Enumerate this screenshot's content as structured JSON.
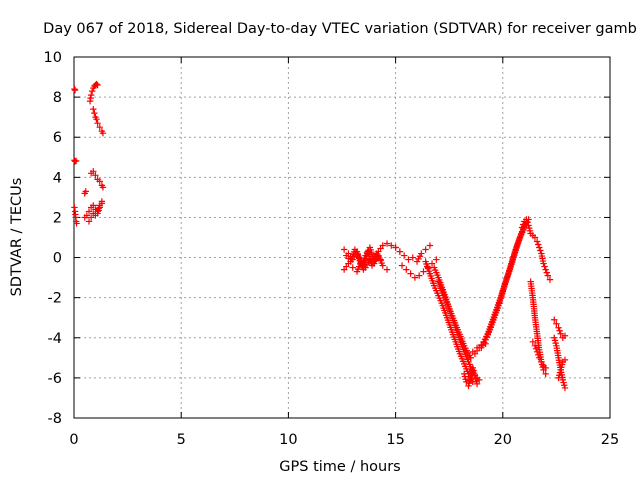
{
  "chart_data": {
    "type": "scatter",
    "title": "Day 067 of 2018, Sidereal Day-to-day VTEC variation (SDTVAR) for receiver gamb",
    "xlabel": "GPS time / hours",
    "ylabel": "SDTVAR / TECUs",
    "xlim": [
      0,
      25
    ],
    "ylim": [
      -8,
      10
    ],
    "xticks": [
      0,
      5,
      10,
      15,
      20,
      25
    ],
    "yticks": [
      -8,
      -6,
      -4,
      -2,
      0,
      2,
      4,
      6,
      8,
      10
    ],
    "grid": true,
    "marker": "+",
    "color": "#ff0000",
    "series": [
      {
        "name": "SDTVAR",
        "segments": [
          {
            "x": [
              0.02,
              0.05
            ],
            "y": [
              8.4,
              8.35
            ]
          },
          {
            "x": [
              0.02,
              0.05,
              0.1
            ],
            "y": [
              4.85,
              4.8,
              4.82
            ]
          },
          {
            "x": [
              0.02,
              0.05,
              0.08,
              0.1,
              0.12
            ],
            "y": [
              2.5,
              2.3,
              2.0,
              1.8,
              1.7
            ]
          },
          {
            "x": [
              0.75,
              0.8,
              0.85,
              0.9,
              0.95,
              1.0,
              1.05,
              1.1
            ],
            "y": [
              7.8,
              8.1,
              8.3,
              8.45,
              8.55,
              8.6,
              8.65,
              8.6
            ]
          },
          {
            "x": [
              0.9,
              0.95,
              1.0,
              1.05,
              1.1,
              1.2,
              1.3,
              1.35
            ],
            "y": [
              7.4,
              7.2,
              7.0,
              6.9,
              6.7,
              6.5,
              6.3,
              6.2
            ]
          },
          {
            "x": [
              0.5,
              0.55
            ],
            "y": [
              3.2,
              3.3
            ]
          },
          {
            "x": [
              0.8,
              0.9,
              1.0,
              1.1,
              1.2,
              1.3,
              1.35
            ],
            "y": [
              4.2,
              4.3,
              4.1,
              3.9,
              3.8,
              3.6,
              3.5
            ]
          },
          {
            "x": [
              0.5,
              0.6,
              0.7,
              0.8,
              0.9,
              1.0,
              1.1,
              1.2,
              1.3
            ],
            "y": [
              2.0,
              2.1,
              2.3,
              2.5,
              2.6,
              2.4,
              2.2,
              2.5,
              2.7
            ]
          },
          {
            "x": [
              0.7,
              0.8,
              0.9,
              1.0,
              1.1,
              1.2,
              1.3
            ],
            "y": [
              1.8,
              2.0,
              2.2,
              2.1,
              2.3,
              2.6,
              2.8
            ]
          },
          {
            "x": [
              12.6,
              12.8,
              13.0,
              13.2,
              13.4,
              13.6,
              13.8,
              14.0,
              14.2,
              14.4,
              14.6,
              14.8,
              15.0,
              15.2
            ],
            "y": [
              0.4,
              0.2,
              -0.1,
              0.3,
              -0.4,
              0.1,
              0.5,
              -0.2,
              0.3,
              0.6,
              0.7,
              0.6,
              0.5,
              0.3
            ]
          },
          {
            "x": [
              12.6,
              12.8,
              13.0,
              13.2,
              13.4,
              13.6,
              13.8,
              14.0,
              14.2,
              14.4,
              14.6
            ],
            "y": [
              -0.6,
              -0.3,
              -0.5,
              -0.7,
              -0.2,
              -0.5,
              -0.1,
              -0.3,
              0.1,
              -0.4,
              -0.6
            ]
          },
          {
            "x": [
              12.7,
              12.9,
              13.1,
              13.3,
              13.5,
              13.7,
              13.9,
              14.1,
              14.3
            ],
            "y": [
              0.1,
              -0.2,
              0.4,
              0.0,
              -0.6,
              0.3,
              -0.4,
              0.2,
              -0.1
            ]
          },
          {
            "x": [
              15.0,
              15.2,
              15.4,
              15.6,
              15.8,
              16.0,
              16.2,
              16.4,
              16.6
            ],
            "y": [
              0.5,
              0.3,
              0.1,
              -0.1,
              0.0,
              -0.2,
              0.2,
              0.4,
              0.6
            ]
          },
          {
            "x": [
              15.3,
              15.5,
              15.7,
              15.9,
              16.1,
              16.3,
              16.5,
              16.7,
              16.9
            ],
            "y": [
              -0.4,
              -0.6,
              -0.8,
              -1.0,
              -0.9,
              -0.7,
              -0.5,
              -0.3,
              -0.1
            ]
          },
          {
            "x": [
              16.4,
              16.6,
              16.8,
              17.0,
              17.2,
              17.4,
              17.6,
              17.8,
              18.0,
              18.2,
              18.4,
              18.6
            ],
            "y": [
              -0.2,
              -0.8,
              -1.4,
              -1.9,
              -2.4,
              -3.0,
              -3.6,
              -4.2,
              -4.8,
              -5.3,
              -5.8,
              -6.2
            ]
          },
          {
            "x": [
              16.8,
              17.0,
              17.2,
              17.4,
              17.6,
              17.8,
              18.0,
              18.2,
              18.4,
              18.6,
              18.8
            ],
            "y": [
              -0.5,
              -1.0,
              -1.6,
              -2.2,
              -2.9,
              -3.5,
              -4.1,
              -4.7,
              -5.2,
              -5.7,
              -6.0
            ]
          },
          {
            "x": [
              17.0,
              17.3,
              17.6,
              17.9,
              18.2,
              18.5
            ],
            "y": [
              -1.2,
              -2.0,
              -2.8,
              -3.6,
              -4.4,
              -5.0
            ]
          },
          {
            "x": [
              18.2,
              18.3,
              18.4,
              18.5,
              18.6,
              18.7,
              18.8,
              18.9
            ],
            "y": [
              -5.8,
              -6.2,
              -6.4,
              -6.0,
              -5.5,
              -5.9,
              -6.3,
              -6.1
            ]
          },
          {
            "x": [
              18.5,
              18.7,
              18.9,
              19.1,
              19.3,
              19.5,
              19.7,
              19.9,
              20.1,
              20.3,
              20.5,
              20.7,
              20.9,
              21.1
            ],
            "y": [
              -5.0,
              -4.8,
              -4.5,
              -4.2,
              -3.8,
              -3.2,
              -2.6,
              -2.0,
              -1.3,
              -0.7,
              0.0,
              0.7,
              1.3,
              1.8
            ]
          },
          {
            "x": [
              19.0,
              19.2,
              19.4,
              19.6,
              19.8,
              20.0,
              20.2,
              20.4,
              20.6,
              20.8,
              21.0,
              21.2
            ],
            "y": [
              -4.5,
              -4.1,
              -3.6,
              -3.0,
              -2.4,
              -1.7,
              -1.0,
              -0.3,
              0.4,
              1.0,
              1.5,
              1.9
            ]
          },
          {
            "x": [
              18.6,
              18.8,
              19.0,
              19.2
            ],
            "y": [
              -4.7,
              -4.5,
              -4.4,
              -4.3
            ]
          },
          {
            "x": [
              20.9,
              21.0,
              21.1,
              21.2,
              21.3,
              21.4,
              21.5,
              21.6,
              21.7,
              21.8,
              21.9,
              22.0,
              22.1,
              22.2
            ],
            "y": [
              1.5,
              1.8,
              1.9,
              1.6,
              1.2,
              1.1,
              1.0,
              0.8,
              0.5,
              0.2,
              -0.3,
              -0.6,
              -0.9,
              -1.1
            ]
          },
          {
            "x": [
              21.3,
              21.4,
              21.5,
              21.6,
              21.7,
              21.8,
              21.9,
              22.0
            ],
            "y": [
              -1.2,
              -2.0,
              -3.0,
              -3.8,
              -4.6,
              -5.2,
              -5.6,
              -5.8
            ]
          },
          {
            "x": [
              21.4,
              21.5,
              21.6,
              21.7,
              21.8,
              21.9,
              22.0
            ],
            "y": [
              -4.2,
              -4.4,
              -4.7,
              -5.0,
              -5.2,
              -5.4,
              -5.5
            ]
          },
          {
            "x": [
              22.4,
              22.5,
              22.6,
              22.7,
              22.8,
              22.9
            ],
            "y": [
              -3.1,
              -3.3,
              -3.5,
              -3.8,
              -4.0,
              -3.9
            ]
          },
          {
            "x": [
              22.4,
              22.5,
              22.6,
              22.7,
              22.8,
              22.9
            ],
            "y": [
              -4.0,
              -4.4,
              -5.0,
              -5.6,
              -6.1,
              -6.5
            ]
          },
          {
            "x": [
              22.6,
              22.7,
              22.8,
              22.9
            ],
            "y": [
              -6.0,
              -5.6,
              -5.2,
              -5.1
            ]
          }
        ]
      }
    ]
  }
}
